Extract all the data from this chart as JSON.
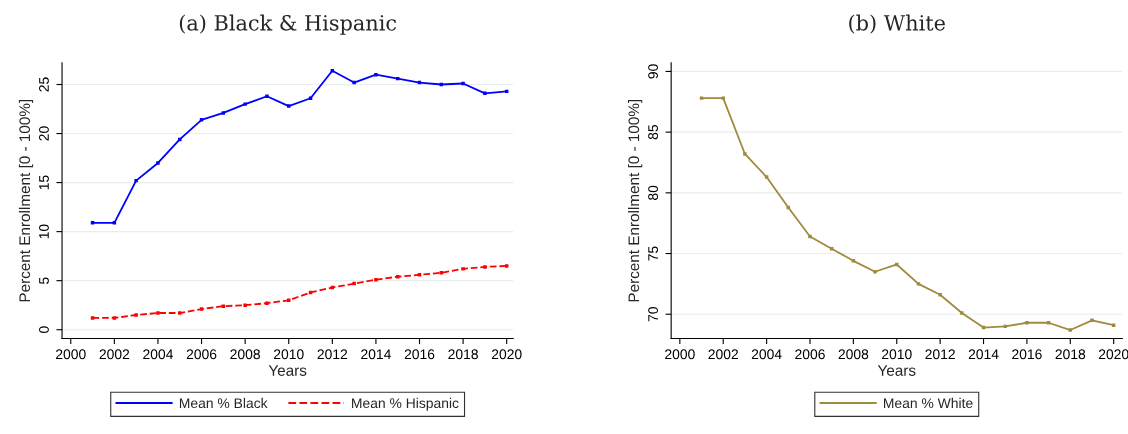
{
  "chart_data": [
    {
      "type": "line",
      "title": "(a) Black & Hispanic",
      "xlabel": "Years",
      "ylabel": "Percent Enrollment [0 - 100%]",
      "x": [
        2001,
        2002,
        2003,
        2004,
        2005,
        2006,
        2007,
        2008,
        2009,
        2010,
        2011,
        2012,
        2013,
        2014,
        2015,
        2016,
        2017,
        2018,
        2019,
        2020
      ],
      "series": [
        {
          "name": "Mean % Black",
          "color": "#0000ff",
          "line_style": "solid",
          "values": [
            10.9,
            10.9,
            15.2,
            17.0,
            19.4,
            21.4,
            22.1,
            23.0,
            23.8,
            22.8,
            23.6,
            26.4,
            25.2,
            26.0,
            25.6,
            25.2,
            25.0,
            25.1,
            24.1,
            24.3
          ]
        },
        {
          "name": "Mean % Hispanic",
          "color": "#ff0000",
          "line_style": "dashed",
          "values": [
            1.2,
            1.2,
            1.5,
            1.7,
            1.7,
            2.1,
            2.4,
            2.5,
            2.7,
            3.0,
            3.8,
            4.3,
            4.7,
            5.1,
            5.4,
            5.6,
            5.8,
            6.2,
            6.4,
            6.5
          ]
        }
      ],
      "xlim": [
        1999.6,
        2020.3
      ],
      "xticks": [
        2000,
        2002,
        2004,
        2006,
        2008,
        2010,
        2012,
        2014,
        2016,
        2018,
        2020
      ],
      "ylim": [
        -0.9,
        27.2
      ],
      "yticks": [
        0,
        5,
        10,
        15,
        20,
        25
      ],
      "grid": "y",
      "legend": "bottom",
      "marker": "square"
    },
    {
      "type": "line",
      "title": "(b) White",
      "xlabel": "Years",
      "ylabel": "Percent Enrollment [0 - 100%]",
      "x": [
        2001,
        2002,
        2003,
        2004,
        2005,
        2006,
        2007,
        2008,
        2009,
        2010,
        2011,
        2012,
        2013,
        2014,
        2015,
        2016,
        2017,
        2018,
        2019,
        2020
      ],
      "series": [
        {
          "name": "Mean % White",
          "color": "#a08a3c",
          "line_style": "solid",
          "values": [
            87.8,
            87.8,
            83.2,
            81.3,
            78.8,
            76.4,
            75.4,
            74.4,
            73.5,
            74.1,
            72.5,
            71.6,
            70.1,
            68.9,
            69.0,
            69.3,
            69.3,
            68.7,
            69.5,
            69.1
          ]
        }
      ],
      "xlim": [
        1999.6,
        2020.4
      ],
      "xticks": [
        2000,
        2002,
        2004,
        2006,
        2008,
        2010,
        2012,
        2014,
        2016,
        2018,
        2020
      ],
      "ylim": [
        68.0,
        90.7
      ],
      "yticks": [
        70,
        75,
        80,
        85,
        90
      ],
      "grid": "y",
      "legend": "bottom",
      "marker": "square"
    }
  ]
}
